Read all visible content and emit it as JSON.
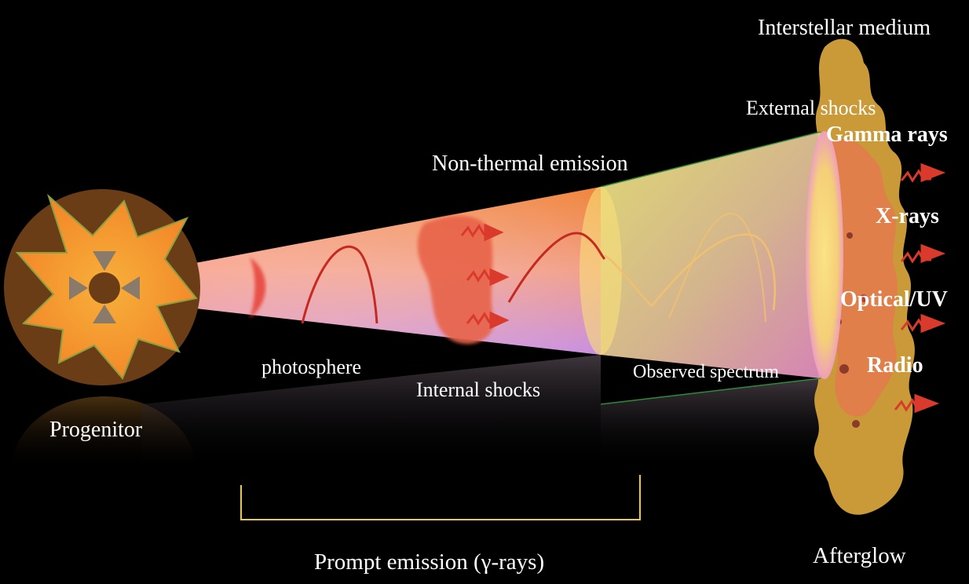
{
  "labels": {
    "ism": "Interstellar medium",
    "external_shocks": "External shocks",
    "non_thermal": "Non-thermal emission",
    "photosphere": "photosphere",
    "internal_shocks": "Internal shocks",
    "observed_spectrum": "Observed  spectrum",
    "progenitor": "Progenitor",
    "prompt": "Prompt emission (γ-rays)",
    "afterglow": "Afterglow"
  },
  "bands": [
    "Gamma rays",
    "X-rays",
    "Optical/UV",
    "Radio"
  ],
  "colors": {
    "background": "#000000",
    "progenitor_disc": "#6b3d16",
    "star_outer": "#f7a233",
    "cone_orange": "#f08a3c",
    "cone_pink": "#e78fc8",
    "cone_yellow": "#f5ef8a",
    "ism_gold": "#c99a37",
    "shock_red": "#d93a2b",
    "bracket": "#e8c75a"
  }
}
